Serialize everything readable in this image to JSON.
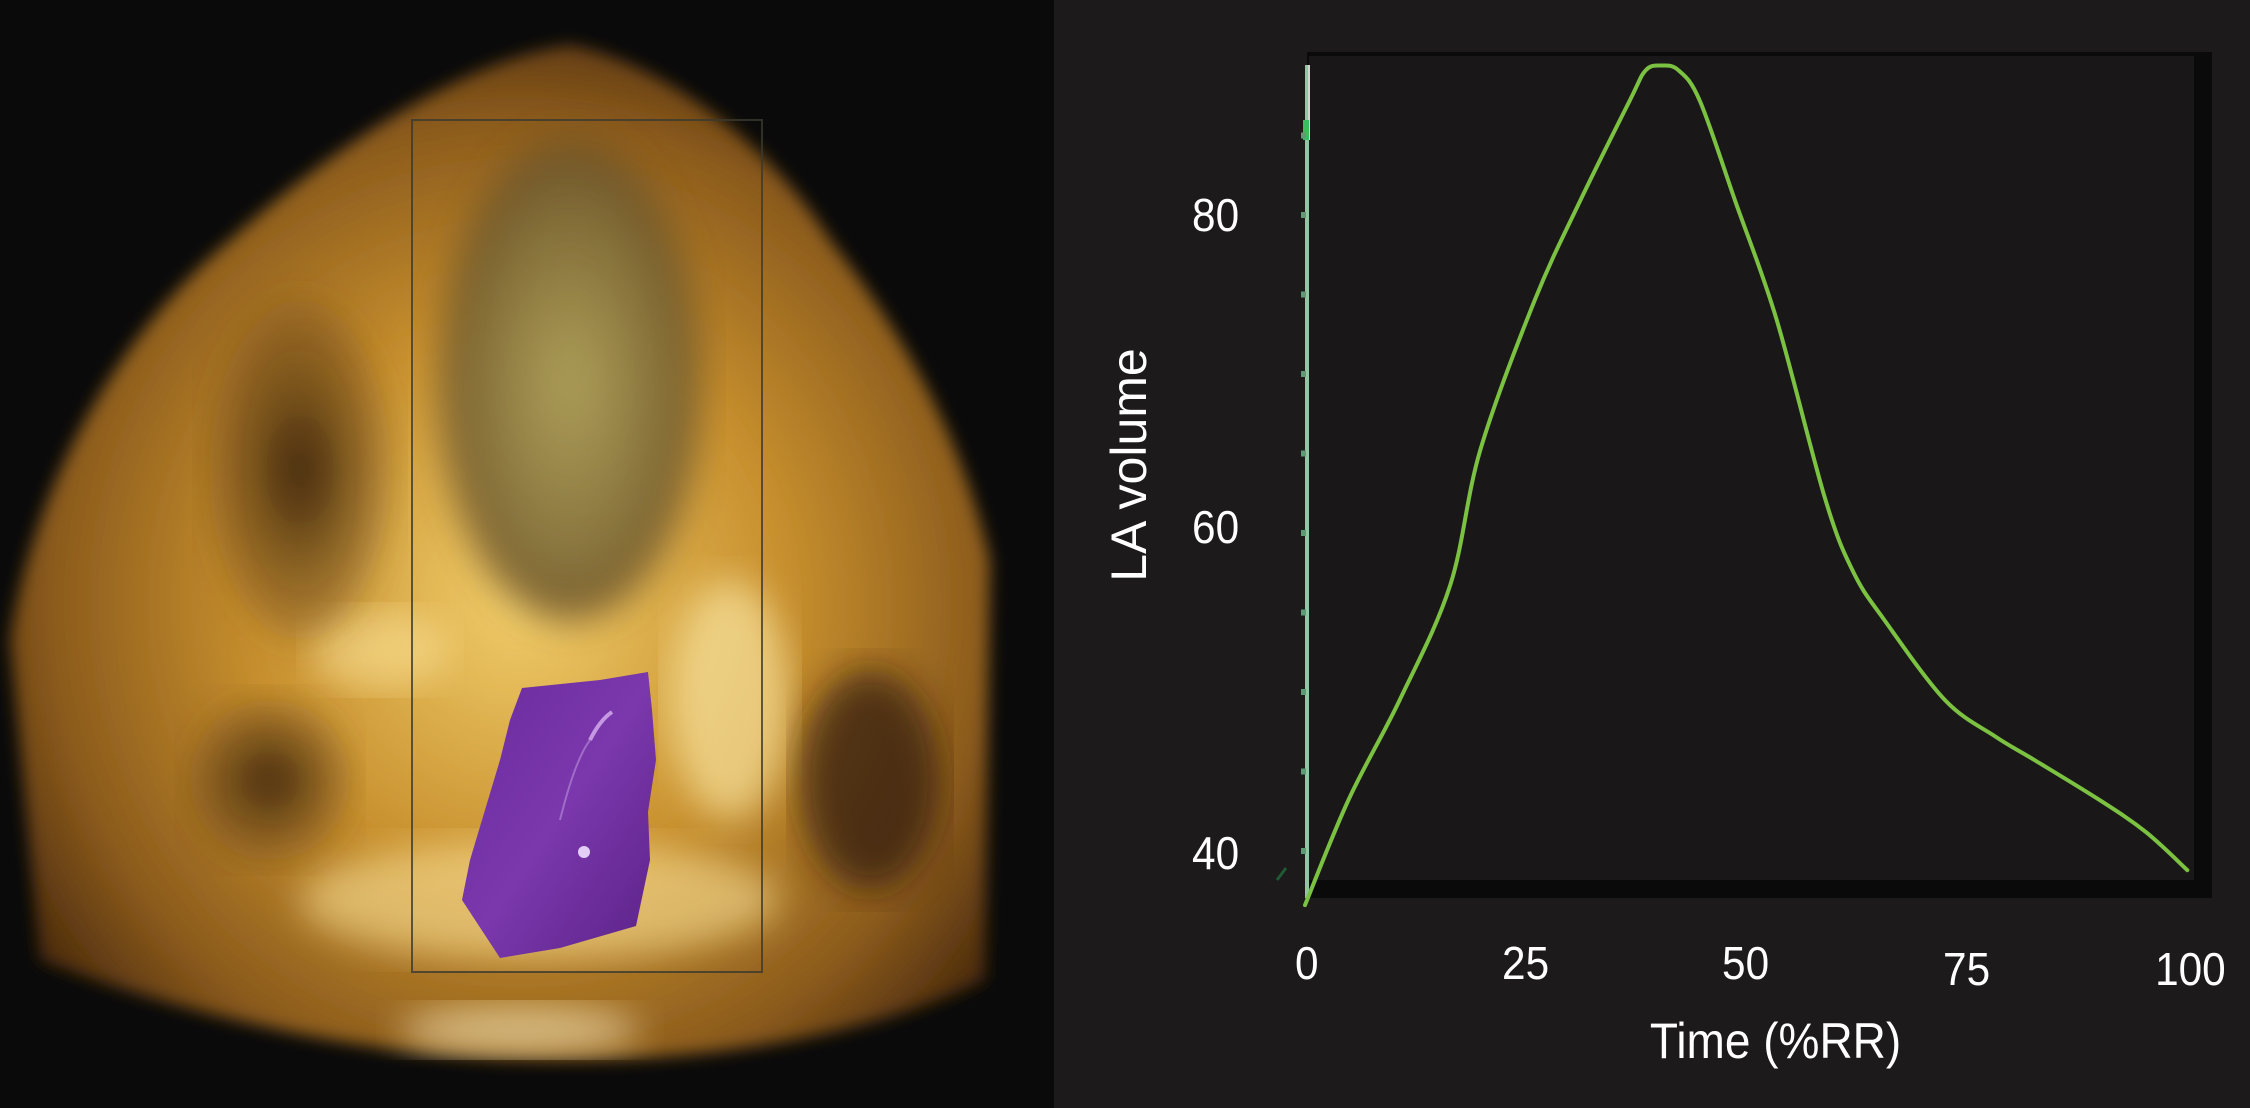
{
  "figure": {
    "left_panel": {
      "description": "3D echocardiography apical view with left atrium segmentation",
      "segmentation_color": "#7232a8",
      "tissue_color": "#d8a03a"
    },
    "right_panel": {
      "background": "#1c1a1b",
      "plot_background": "#1a1718",
      "curve_color": "#7cc242",
      "axis_color": "#8fc7a3"
    }
  },
  "chart_data": {
    "type": "line",
    "title": "",
    "xlabel": "Time (%RR)",
    "ylabel": "LA volume",
    "xlim": [
      0,
      100
    ],
    "ylim": [
      36,
      90
    ],
    "x_ticks": [
      "0",
      "25",
      "50",
      "75",
      "100"
    ],
    "y_ticks": [
      "40",
      "60",
      "80"
    ],
    "grid": false,
    "legend": null,
    "series": [
      {
        "name": "LA volume",
        "x": [
          0,
          4.9,
          10.7,
          16.4,
          19.8,
          22.0,
          26.0,
          31.1,
          36.7,
          38.5,
          40.3,
          42.2,
          44.6,
          48.6,
          53.3,
          58.8,
          62.0,
          65.5,
          72.3,
          78.0,
          82.5,
          89.8,
          95.0,
          99.7
        ],
        "y": [
          36.6,
          43.2,
          49.5,
          56.7,
          65.2,
          64.0,
          74.7,
          80.9,
          87.2,
          89.1,
          89.4,
          89.1,
          87.2,
          80.9,
          73.4,
          62.1,
          57.5,
          54.5,
          49.5,
          47.2,
          45.7,
          43.2,
          41.2,
          38.8
        ]
      }
    ]
  }
}
